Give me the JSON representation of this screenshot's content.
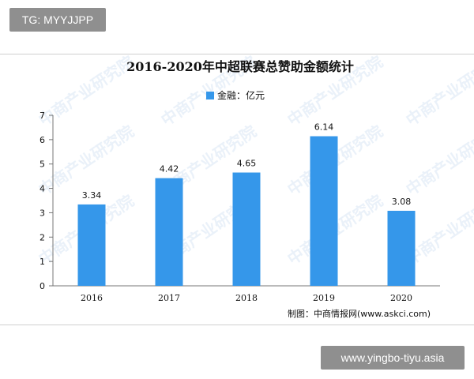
{
  "badges": {
    "top_left": "TG: MYYJJPP",
    "bottom_right": "www.yingbo-tiyu.asia"
  },
  "watermark": {
    "text": "中商产业研究院"
  },
  "chart_data": {
    "type": "bar",
    "title": "2016-2020年中超联赛总赞助金额统计",
    "legend": {
      "label": "金融：亿元",
      "placement": "top-center"
    },
    "categories": [
      "2016",
      "2017",
      "2018",
      "2019",
      "2020"
    ],
    "series": [
      {
        "name": "金融：亿元",
        "values": [
          3.34,
          4.42,
          4.65,
          6.14,
          3.08
        ]
      }
    ],
    "data_labels": [
      "3.34",
      "4.42",
      "4.65",
      "6.14",
      "3.08"
    ],
    "y_ticks": [
      "0",
      "1",
      "2",
      "3",
      "4",
      "5",
      "6",
      "7"
    ],
    "ylim": [
      0,
      7
    ],
    "grid": false,
    "source_text": "制图：中商情报网(www.askci.com)",
    "colors": {
      "bar": "#3597ea",
      "axis": "#777777",
      "text": "#111111",
      "watermark": "#d8e6f4"
    }
  }
}
